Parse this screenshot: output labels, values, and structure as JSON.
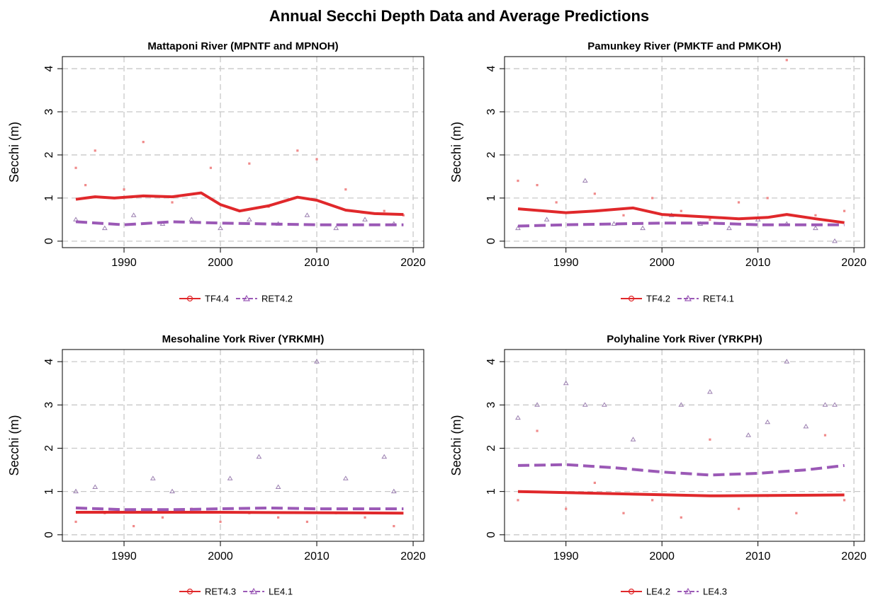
{
  "title": "Annual Secchi Depth Data and Average Predictions",
  "chart_data": [
    {
      "type": "line",
      "title": "Mattaponi River (MPNTF and MPNOH)",
      "y_label": "Secchi (m)",
      "xlim": [
        1983.6,
        2021.1
      ],
      "ylim": [
        -0.15,
        4.28
      ],
      "xticks": [
        1990,
        2000,
        2010,
        2020
      ],
      "yticks": [
        0,
        1,
        2,
        3,
        4
      ],
      "grid": true,
      "series": [
        {
          "name": "TF4.4",
          "color": "#e0282b",
          "point_color": "#f08a8a",
          "dash": false,
          "x": [
            1985,
            1987,
            1989,
            1992,
            1995,
            1998,
            2000,
            2002,
            2005,
            2008,
            2010,
            2013,
            2016,
            2019
          ],
          "values": [
            0.97,
            1.03,
            1.0,
            1.05,
            1.03,
            1.12,
            0.85,
            0.7,
            0.82,
            1.02,
            0.95,
            0.72,
            0.64,
            0.62
          ],
          "points": {
            "x": [
              1985,
              1986,
              1987,
              1990,
              1992,
              1995,
              1999,
              2003,
              2005,
              2008,
              2010,
              2013,
              2017,
              2019
            ],
            "values": [
              1.7,
              1.3,
              2.1,
              1.2,
              2.3,
              0.9,
              1.7,
              1.8,
              0.8,
              2.1,
              1.9,
              1.2,
              0.7,
              0.6
            ]
          }
        },
        {
          "name": "RET4.2",
          "color": "#9b59b6",
          "point_color": "#9b7fb0",
          "dash": true,
          "x": [
            1985,
            1990,
            1995,
            2000,
            2005,
            2010,
            2019
          ],
          "values": [
            0.45,
            0.38,
            0.45,
            0.42,
            0.4,
            0.38,
            0.38
          ],
          "points": {
            "x": [
              1985,
              1988,
              1991,
              1994,
              1997,
              2000,
              2003,
              2006,
              2009,
              2012,
              2015,
              2018
            ],
            "values": [
              0.5,
              0.3,
              0.6,
              0.4,
              0.5,
              0.3,
              0.5,
              0.4,
              0.6,
              0.3,
              0.5,
              0.4
            ]
          }
        }
      ]
    },
    {
      "type": "line",
      "title": "Pamunkey River (PMKTF and PMKOH)",
      "y_label": "Secchi (m)",
      "xlim": [
        1983.6,
        2021.1
      ],
      "ylim": [
        -0.15,
        4.28
      ],
      "xticks": [
        1990,
        2000,
        2010,
        2020
      ],
      "yticks": [
        0,
        1,
        2,
        3,
        4
      ],
      "grid": true,
      "series": [
        {
          "name": "TF4.2",
          "color": "#e0282b",
          "point_color": "#f08a8a",
          "dash": false,
          "x": [
            1985,
            1990,
            1993,
            1997,
            2000,
            2004,
            2008,
            2011,
            2013,
            2016,
            2019
          ],
          "values": [
            0.75,
            0.66,
            0.7,
            0.77,
            0.62,
            0.57,
            0.52,
            0.55,
            0.62,
            0.52,
            0.43
          ],
          "points": {
            "x": [
              1985,
              1987,
              1989,
              1993,
              1996,
              1999,
              2002,
              2005,
              2008,
              2011,
              2013,
              2016,
              2019
            ],
            "values": [
              1.4,
              1.3,
              0.9,
              1.1,
              0.6,
              1.0,
              0.7,
              0.5,
              0.9,
              1.0,
              4.2,
              0.6,
              0.7
            ]
          }
        },
        {
          "name": "RET4.1",
          "color": "#9b59b6",
          "point_color": "#9b7fb0",
          "dash": true,
          "x": [
            1985,
            1990,
            1995,
            2000,
            2005,
            2010,
            2019
          ],
          "values": [
            0.35,
            0.38,
            0.4,
            0.42,
            0.42,
            0.38,
            0.38
          ],
          "points": {
            "x": [
              1985,
              1988,
              1992,
              1995,
              1998,
              2001,
              2004,
              2007,
              2010,
              2013,
              2016,
              2018
            ],
            "values": [
              0.3,
              0.5,
              1.4,
              0.4,
              0.3,
              0.6,
              0.4,
              0.3,
              0.5,
              0.4,
              0.3,
              0.0
            ]
          }
        }
      ]
    },
    {
      "type": "line",
      "title": "Mesohaline York River (YRKMH)",
      "y_label": "Secchi (m)",
      "xlim": [
        1983.6,
        2021.1
      ],
      "ylim": [
        -0.15,
        4.28
      ],
      "xticks": [
        1990,
        2000,
        2010,
        2020
      ],
      "yticks": [
        0,
        1,
        2,
        3,
        4
      ],
      "grid": true,
      "series": [
        {
          "name": "RET4.3",
          "color": "#e0282b",
          "point_color": "#f08a8a",
          "dash": false,
          "x": [
            1985,
            2000,
            2019
          ],
          "values": [
            0.52,
            0.52,
            0.5
          ],
          "points": {
            "x": [
              1985,
              1988,
              1991,
              1994,
              1997,
              2000,
              2003,
              2006,
              2009,
              2012,
              2015,
              2018
            ],
            "values": [
              0.3,
              0.5,
              0.2,
              0.4,
              0.6,
              0.3,
              0.5,
              0.4,
              0.3,
              0.5,
              0.4,
              0.2
            ]
          }
        },
        {
          "name": "LE4.1",
          "color": "#9b59b6",
          "point_color": "#9b7fb0",
          "dash": true,
          "x": [
            1985,
            1990,
            1995,
            2000,
            2005,
            2010,
            2015,
            2019
          ],
          "values": [
            0.62,
            0.58,
            0.58,
            0.6,
            0.62,
            0.6,
            0.6,
            0.6
          ],
          "points": {
            "x": [
              1985,
              1987,
              1993,
              1995,
              2001,
              2004,
              2006,
              2010,
              2013,
              2017,
              2018
            ],
            "values": [
              1.0,
              1.1,
              1.3,
              1.0,
              1.3,
              1.8,
              1.1,
              4.0,
              1.3,
              1.8,
              1.0
            ]
          }
        }
      ]
    },
    {
      "type": "line",
      "title": "Polyhaline York River (YRKPH)",
      "y_label": "Secchi (m)",
      "xlim": [
        1983.6,
        2021.1
      ],
      "ylim": [
        -0.15,
        4.28
      ],
      "xticks": [
        1990,
        2000,
        2010,
        2020
      ],
      "yticks": [
        0,
        1,
        2,
        3,
        4
      ],
      "grid": true,
      "series": [
        {
          "name": "LE4.2",
          "color": "#e0282b",
          "point_color": "#f08a8a",
          "dash": false,
          "x": [
            1985,
            1995,
            2005,
            2019
          ],
          "values": [
            1.0,
            0.95,
            0.9,
            0.92
          ],
          "points": {
            "x": [
              1985,
              1987,
              1990,
              1993,
              1996,
              1999,
              2002,
              2005,
              2008,
              2011,
              2014,
              2017,
              2019
            ],
            "values": [
              0.8,
              2.4,
              0.6,
              1.2,
              0.5,
              0.8,
              0.4,
              2.2,
              0.6,
              0.9,
              0.5,
              2.3,
              0.8
            ]
          }
        },
        {
          "name": "LE4.3",
          "color": "#9b59b6",
          "point_color": "#9b7fb0",
          "dash": true,
          "x": [
            1985,
            1990,
            1995,
            2000,
            2005,
            2010,
            2015,
            2019
          ],
          "values": [
            1.6,
            1.62,
            1.55,
            1.45,
            1.38,
            1.42,
            1.5,
            1.6
          ],
          "points": {
            "x": [
              1985,
              1987,
              1990,
              1992,
              1994,
              1997,
              2002,
              2005,
              2009,
              2011,
              2013,
              2015,
              2017,
              2018
            ],
            "values": [
              2.7,
              3.0,
              3.5,
              3.0,
              3.0,
              2.2,
              3.0,
              3.3,
              2.3,
              2.6,
              4.0,
              2.5,
              3.0,
              3.0
            ]
          }
        }
      ]
    }
  ]
}
